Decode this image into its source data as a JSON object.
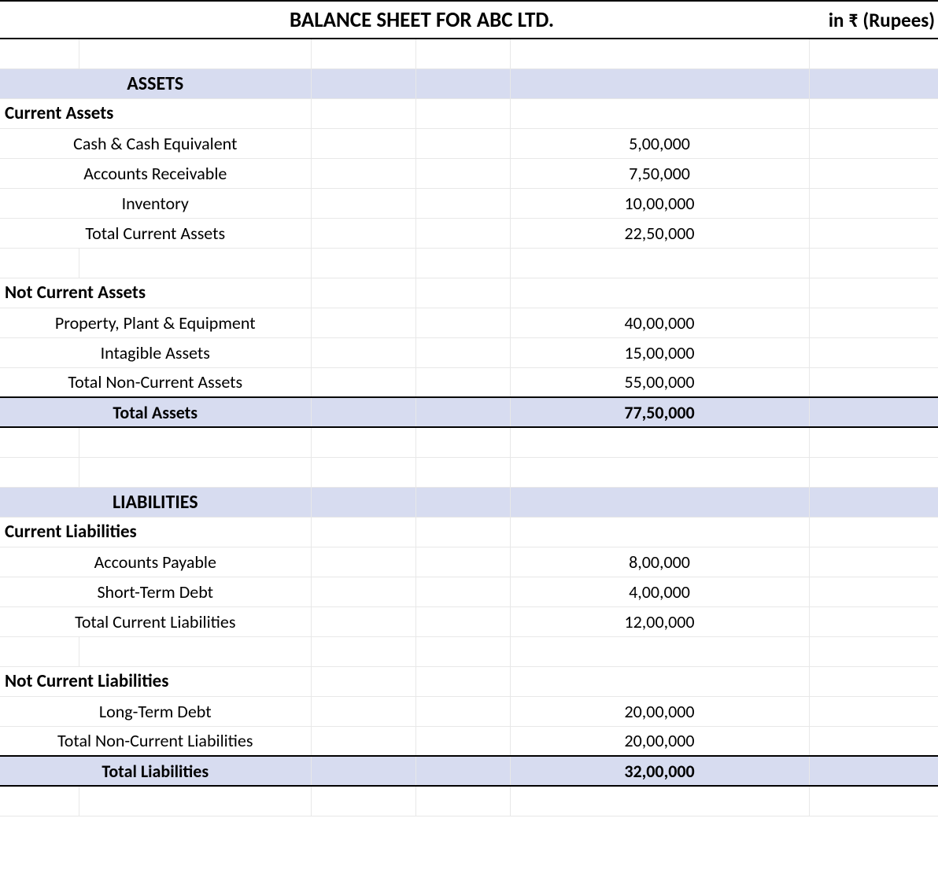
{
  "colors": {
    "section_bg": "#d7dcf0",
    "gridline": "#e8e8e8",
    "border_strong": "#000000",
    "background": "#ffffff",
    "text": "#000000"
  },
  "typography": {
    "font_family": "Calibri",
    "title_fontsize": 27,
    "section_fontsize": 24,
    "body_fontsize": 22
  },
  "header": {
    "title": "BALANCE SHEET FOR ABC LTD.",
    "currency_label": "in ₹ (Rupees)"
  },
  "assets": {
    "section_label": "ASSETS",
    "current": {
      "header": "Current Assets",
      "items": [
        {
          "label": "Cash & Cash Equivalent",
          "value": "5,00,000"
        },
        {
          "label": "Accounts Receivable",
          "value": "7,50,000"
        },
        {
          "label": "Inventory",
          "value": "10,00,000"
        },
        {
          "label": "Total Current Assets",
          "value": "22,50,000"
        }
      ]
    },
    "non_current": {
      "header": "Not Current Assets",
      "items": [
        {
          "label": "Property, Plant & Equipment",
          "value": "40,00,000"
        },
        {
          "label": "Intagible Assets",
          "value": "15,00,000"
        },
        {
          "label": "Total Non-Current Assets",
          "value": "55,00,000"
        }
      ]
    },
    "total": {
      "label": "Total Assets",
      "value": "77,50,000"
    }
  },
  "liabilities": {
    "section_label": "LIABILITIES",
    "current": {
      "header": "Current Liabilities",
      "items": [
        {
          "label": "Accounts Payable",
          "value": "8,00,000"
        },
        {
          "label": "Short-Term Debt",
          "value": "4,00,000"
        },
        {
          "label": "Total Current Liabilities",
          "value": "12,00,000"
        }
      ]
    },
    "non_current": {
      "header": "Not Current Liabilities",
      "items": [
        {
          "label": "Long-Term Debt",
          "value": "20,00,000"
        },
        {
          "label": "Total Non-Current Liabilities",
          "value": "20,00,000"
        }
      ]
    },
    "total": {
      "label": "Total Liabilities",
      "value": "32,00,000"
    }
  }
}
